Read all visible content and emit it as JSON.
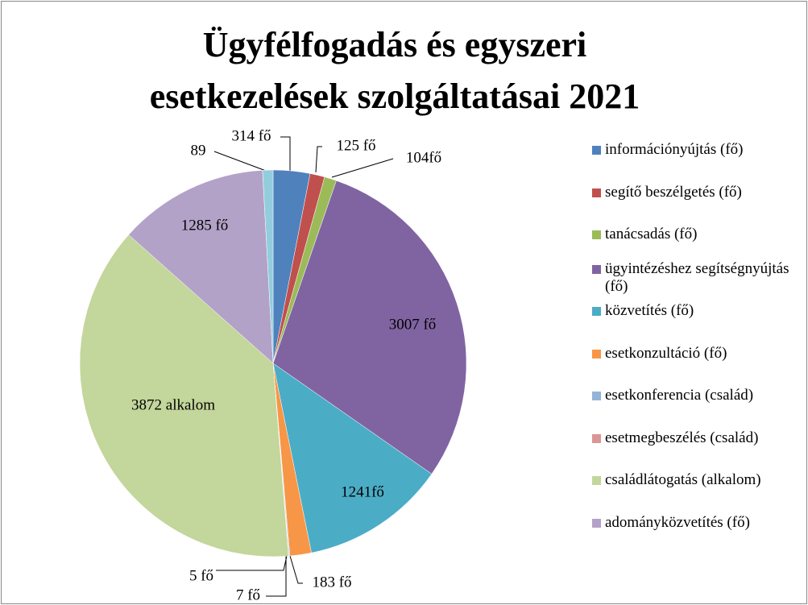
{
  "chart_data": {
    "type": "pie",
    "title": "Ügyfélfogadás és egyszeri esetkezelések szolgáltatásai 2021",
    "categories": [
      "információnyújtás (fő)",
      "segítő beszélgetés (fő)",
      "tanácsadás (fő)",
      "ügyintézéshez segítségnyújtás (fő)",
      "közvetítés (fő)",
      "esetkonzultáció (fő)",
      "esetkonferencia (család)",
      "esetmegbeszélés (család)",
      "családlátogatás (alkalom)",
      "adományközvetítés (fő)",
      null
    ],
    "values": [
      314,
      125,
      104,
      3007,
      1241,
      183,
      7,
      5,
      3872,
      1285,
      89
    ],
    "value_labels": [
      "314 fő",
      "125 fő",
      "104fő",
      "3007 fő",
      "1241fő",
      "183 fő",
      "7 fő",
      "5 fő",
      "3872 alkalom",
      "1285 fő",
      "89"
    ],
    "colors": [
      "#4f81bd",
      "#c0504d",
      "#9bbb59",
      "#8064a2",
      "#4bacc6",
      "#f79646",
      "#95b3d7",
      "#d99694",
      "#c3d69b",
      "#b3a2c7",
      "#93cddd"
    ],
    "legend": "right"
  }
}
